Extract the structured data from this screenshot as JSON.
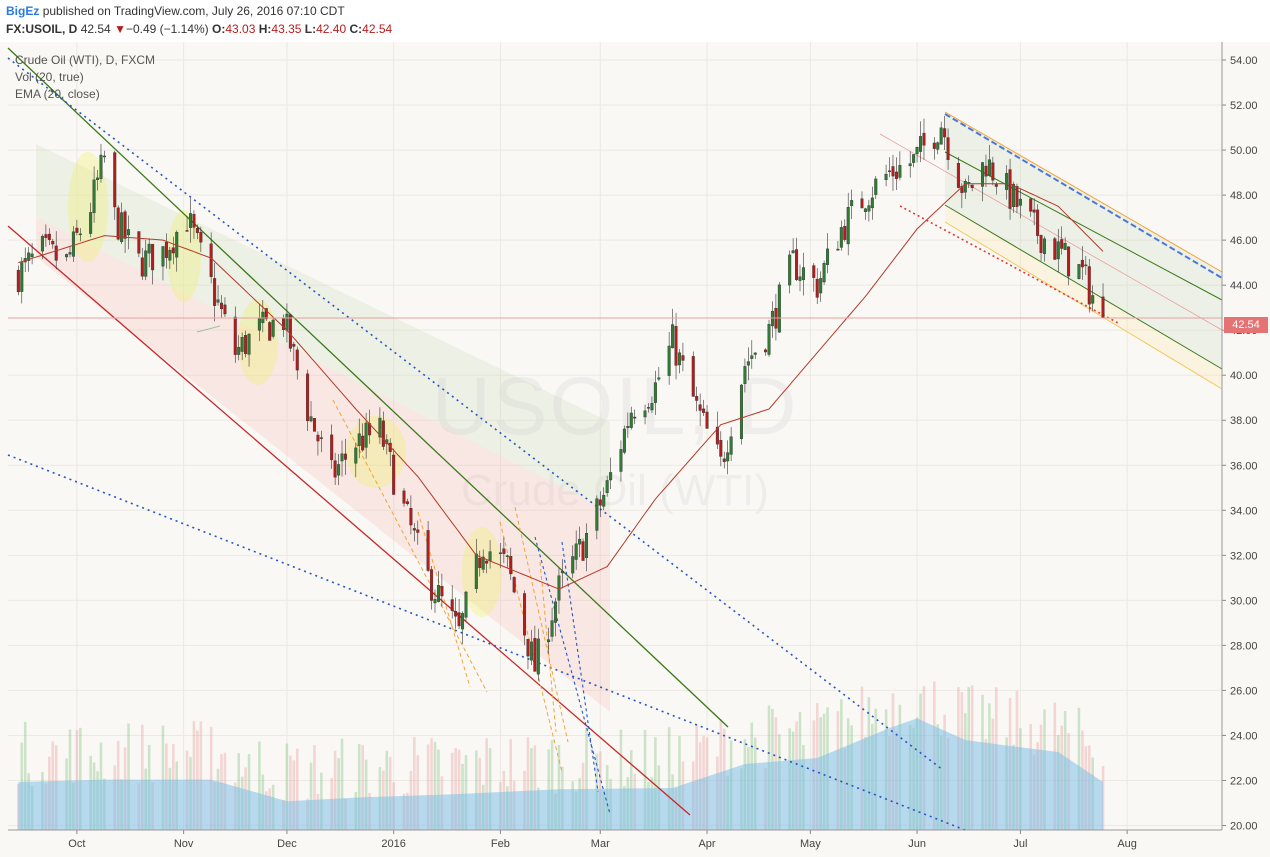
{
  "header": {
    "author": "BigEz",
    "published": "published on TradingView.com, July 26, 2016 07:10 CDT",
    "symbol": "FX:USOIL, D",
    "last": "42.54",
    "change_arrow": "▼",
    "change": "−0.49 (−1.14%)",
    "o_label": "O:",
    "o": "43.03",
    "h_label": "H:",
    "h": "43.35",
    "l_label": "L:",
    "l": "42.40",
    "c_label": "C:",
    "c": "42.54"
  },
  "legend": {
    "title": "Crude Oil (WTI), D, FXCM",
    "volume": "Vol (20, true)",
    "ema": "EMA (20, close)"
  },
  "watermark": {
    "symbol": "USOIL, D",
    "name": "Crude Oil (WTI)"
  },
  "price_label": "42.54",
  "colors": {
    "up": "#2e7d32",
    "down": "#b71c1c",
    "ema": "#b33a2a",
    "volume_ma": "#7fbfe6",
    "price_line": "#e57373"
  },
  "chart_data": {
    "type": "candlestick",
    "title": "Crude Oil (WTI), D, FXCM",
    "x_ticks": [
      "Oct",
      "Nov",
      "Dec",
      "2016",
      "Feb",
      "Mar",
      "Apr",
      "May",
      "Jun",
      "Jul",
      "Aug"
    ],
    "y_ticks": [
      20,
      22,
      24,
      26,
      28,
      30,
      32,
      34,
      36,
      38,
      40,
      42,
      44,
      46,
      48,
      50,
      52,
      54
    ],
    "ylim": [
      19.8,
      54.8
    ],
    "last_price": 42.54,
    "series": [
      {
        "name": "Price",
        "close_path": [
          [
            "2015-09-14",
            44.5
          ],
          [
            "2015-09-21",
            45.5
          ],
          [
            "2015-09-28",
            45.0
          ],
          [
            "2015-10-05",
            47.5
          ],
          [
            "2015-10-09",
            49.6
          ],
          [
            "2015-10-12",
            47.0
          ],
          [
            "2015-10-19",
            45.0
          ],
          [
            "2015-10-26",
            45.5
          ],
          [
            "2015-11-02",
            47.0
          ],
          [
            "2015-11-09",
            44.0
          ],
          [
            "2015-11-16",
            41.0
          ],
          [
            "2015-11-23",
            42.0
          ],
          [
            "2015-11-30",
            42.5
          ],
          [
            "2015-12-07",
            38.5
          ],
          [
            "2015-12-14",
            35.5
          ],
          [
            "2015-12-21",
            37.0
          ],
          [
            "2015-12-28",
            37.5
          ],
          [
            "2016-01-04",
            34.0
          ],
          [
            "2016-01-11",
            31.0
          ],
          [
            "2016-01-20",
            28.5
          ],
          [
            "2016-01-27",
            32.5
          ],
          [
            "2016-02-03",
            31.5
          ],
          [
            "2016-02-11",
            27.0
          ],
          [
            "2016-02-18",
            30.5
          ],
          [
            "2016-02-25",
            32.5
          ],
          [
            "2016-03-03",
            35.0
          ],
          [
            "2016-03-10",
            38.5
          ],
          [
            "2016-03-17",
            39.5
          ],
          [
            "2016-03-22",
            41.5
          ],
          [
            "2016-03-29",
            38.5
          ],
          [
            "2016-04-05",
            36.0
          ],
          [
            "2016-04-12",
            40.5
          ],
          [
            "2016-04-19",
            42.0
          ],
          [
            "2016-04-26",
            45.0
          ],
          [
            "2016-05-03",
            44.0
          ],
          [
            "2016-05-10",
            46.5
          ],
          [
            "2016-05-17",
            48.0
          ],
          [
            "2016-05-24",
            49.0
          ],
          [
            "2016-05-31",
            49.5
          ],
          [
            "2016-06-08",
            51.2
          ],
          [
            "2016-06-15",
            48.0
          ],
          [
            "2016-06-21",
            49.5
          ],
          [
            "2016-06-28",
            48.0
          ],
          [
            "2016-07-05",
            46.5
          ],
          [
            "2016-07-12",
            45.5
          ],
          [
            "2016-07-19",
            44.5
          ],
          [
            "2016-07-25",
            42.54
          ]
        ]
      },
      {
        "name": "EMA (20, close)",
        "points": [
          [
            "2015-09-14",
            45.0
          ],
          [
            "2015-10-09",
            46.2
          ],
          [
            "2015-10-26",
            46.0
          ],
          [
            "2015-11-09",
            45.2
          ],
          [
            "2015-12-01",
            42.0
          ],
          [
            "2015-12-21",
            38.5
          ],
          [
            "2016-01-08",
            35.5
          ],
          [
            "2016-01-25",
            32.0
          ],
          [
            "2016-02-18",
            30.5
          ],
          [
            "2016-03-03",
            31.5
          ],
          [
            "2016-03-17",
            34.5
          ],
          [
            "2016-04-05",
            37.8
          ],
          [
            "2016-04-19",
            38.5
          ],
          [
            "2016-05-03",
            41.0
          ],
          [
            "2016-05-17",
            43.5
          ],
          [
            "2016-06-01",
            46.5
          ],
          [
            "2016-06-15",
            48.5
          ],
          [
            "2016-06-28",
            48.5
          ],
          [
            "2016-07-12",
            47.5
          ],
          [
            "2016-07-25",
            45.5
          ]
        ]
      },
      {
        "name": "Vol (20, true)",
        "volume_ma": [
          [
            "2015-09-14",
            0.4
          ],
          [
            "2015-10-09",
            0.42
          ],
          [
            "2015-11-09",
            0.42
          ],
          [
            "2015-12-01",
            0.24
          ],
          [
            "2015-12-21",
            0.27
          ],
          [
            "2016-01-20",
            0.3
          ],
          [
            "2016-02-18",
            0.34
          ],
          [
            "2016-03-22",
            0.35
          ],
          [
            "2016-04-12",
            0.55
          ],
          [
            "2016-05-03",
            0.6
          ],
          [
            "2016-05-24",
            0.85
          ],
          [
            "2016-06-01",
            0.93
          ],
          [
            "2016-06-15",
            0.75
          ],
          [
            "2016-06-28",
            0.7
          ],
          [
            "2016-07-12",
            0.65
          ],
          [
            "2016-07-25",
            0.4
          ]
        ]
      }
    ]
  }
}
